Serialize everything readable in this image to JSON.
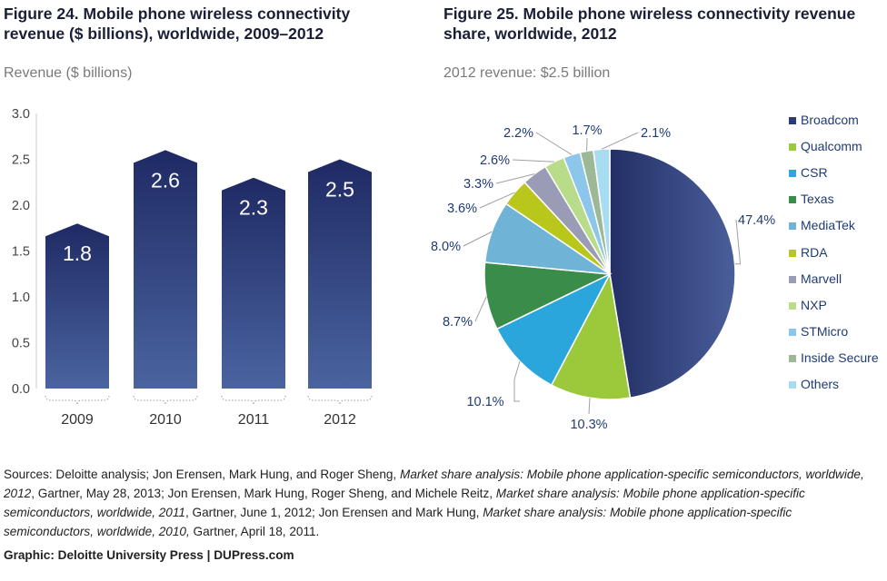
{
  "chart_data": [
    {
      "type": "bar",
      "title": "Figure 24. Mobile phone wireless connectivity revenue ($ billions), worldwide, 2009–2012",
      "ylabel": "Revenue ($ billions)",
      "categories": [
        "2009",
        "2010",
        "2011",
        "2012"
      ],
      "values": [
        1.8,
        2.6,
        2.3,
        2.5
      ],
      "value_labels": [
        "1.8",
        "2.6",
        "2.3",
        "2.5"
      ],
      "ylim": [
        0,
        3.0
      ],
      "yticks": [
        "0.0",
        "0.5",
        "1.0",
        "1.5",
        "2.0",
        "2.5",
        "3.0"
      ],
      "bar_color_top": "#1f2a64",
      "bar_color_bottom": "#4a64a0"
    },
    {
      "type": "pie",
      "title": "Figure 25. Mobile phone wireless connectivity revenue share, worldwide, 2012",
      "subtitle": "2012 revenue: $2.5 billion",
      "slices": [
        {
          "name": "Broadcom",
          "value": 47.4,
          "label": "47.4%",
          "color": "#2b3a73"
        },
        {
          "name": "Qualcomm",
          "value": 10.3,
          "label": "10.3%",
          "color": "#9cc83c"
        },
        {
          "name": "CSR",
          "value": 10.1,
          "label": "10.1%",
          "color": "#2aa6dc"
        },
        {
          "name": "Texas",
          "value": 8.7,
          "label": "8.7%",
          "color": "#3a8c4a"
        },
        {
          "name": "MediaTek",
          "value": 8.0,
          "label": "8.0%",
          "color": "#6fb3d6"
        },
        {
          "name": "RDA",
          "value": 3.6,
          "label": "3.6%",
          "color": "#b9c61c"
        },
        {
          "name": "Marvell",
          "value": 3.3,
          "label": "3.3%",
          "color": "#9a9cb6"
        },
        {
          "name": "NXP",
          "value": 2.6,
          "label": "2.6%",
          "color": "#b8dc8a"
        },
        {
          "name": "STMicro",
          "value": 2.2,
          "label": "2.2%",
          "color": "#8cc6ea"
        },
        {
          "name": "Inside Secure",
          "value": 1.7,
          "label": "1.7%",
          "color": "#9cb896"
        },
        {
          "name": "Others",
          "value": 2.1,
          "label": "2.1%",
          "color": "#a8dcf0"
        }
      ]
    }
  ],
  "fig24": {
    "title": "Figure 24. Mobile phone wireless connectivity revenue ($ billions), worldwide, 2009–2012",
    "subtitle": "Revenue ($ billions)"
  },
  "fig25": {
    "title": "Figure 25. Mobile phone wireless connectivity revenue share, worldwide, 2012",
    "subtitle": "2012 revenue: $2.5 billion"
  },
  "sources": {
    "segments": [
      {
        "text": "Sources: Deloitte analysis; Jon Erensen, Mark Hung, and Roger Sheng, ",
        "italic": false
      },
      {
        "text": "Market share analysis: Mobile phone application-specific semiconductors, worldwide, 2012",
        "italic": true
      },
      {
        "text": ", Gartner, May 28, 2013; Jon Erensen, Mark Hung, Roger Sheng, and Michele Reitz, ",
        "italic": false
      },
      {
        "text": "Market share analysis: Mobile phone application-specific semiconductors, worldwide, 2011",
        "italic": true
      },
      {
        "text": ", Gartner, June 1, 2012; Jon Erensen and Mark Hung, ",
        "italic": false
      },
      {
        "text": "Market share analysis: Mobile phone application-specific semiconductors, worldwide, 2010,",
        "italic": true
      },
      {
        "text": " Gartner, April 18, 2011.",
        "italic": false
      }
    ]
  },
  "credit": "Graphic: Deloitte University Press | DUPress.com"
}
